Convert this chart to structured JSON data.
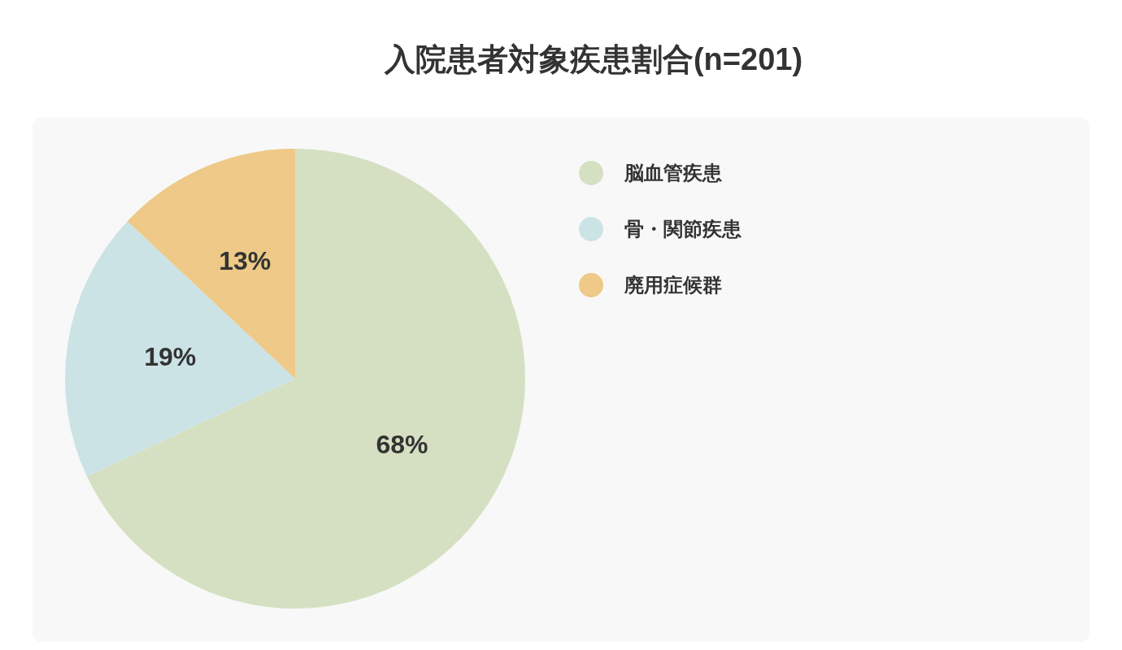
{
  "chart_data": {
    "type": "pie",
    "title": "入院患者対象疾患割合(n=201)",
    "categories": [
      "脳血管疾患",
      "骨・関節疾患",
      "廃用症候群"
    ],
    "values": [
      68,
      19,
      13
    ],
    "colors": [
      "#d5e0c2",
      "#cce3e6",
      "#eec987"
    ],
    "value_labels": [
      "68%",
      "19%",
      "13%"
    ],
    "legend": "right"
  }
}
